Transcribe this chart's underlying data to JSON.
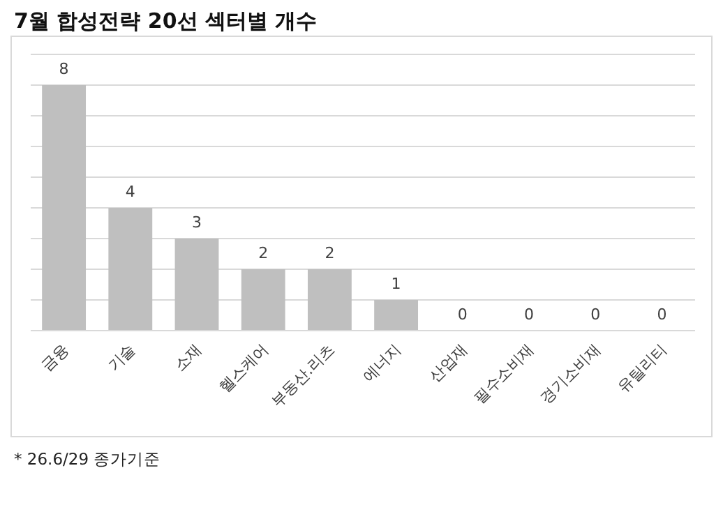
{
  "chart_data": {
    "type": "bar",
    "title": "7월 합성전략 20선 섹터별 개수",
    "categories": [
      "금융",
      "기술",
      "소재",
      "헬스케어",
      "부동산.리츠",
      "에너지",
      "산업재",
      "필수소비재",
      "경기소비재",
      "유틸리티"
    ],
    "values": [
      8,
      4,
      3,
      2,
      2,
      1,
      0,
      0,
      0,
      0
    ],
    "color": "#bfbfbf",
    "ylim": [
      0,
      9
    ],
    "yticks": [
      {
        "value": 0,
        "label": null
      },
      {
        "value": 1,
        "label": null
      },
      {
        "value": 2,
        "label": null
      },
      {
        "value": 3,
        "label": null
      },
      {
        "value": 4,
        "label": null
      },
      {
        "value": 5,
        "label": null
      },
      {
        "value": 6,
        "label": null
      },
      {
        "value": 7,
        "label": null
      },
      {
        "value": 8,
        "label": null
      },
      {
        "value": 9,
        "label": null
      }
    ],
    "grid": "y",
    "tick_labels": "x",
    "data_labels": true,
    "annotations": [
      "* 26.6/29 종가기준"
    ]
  }
}
